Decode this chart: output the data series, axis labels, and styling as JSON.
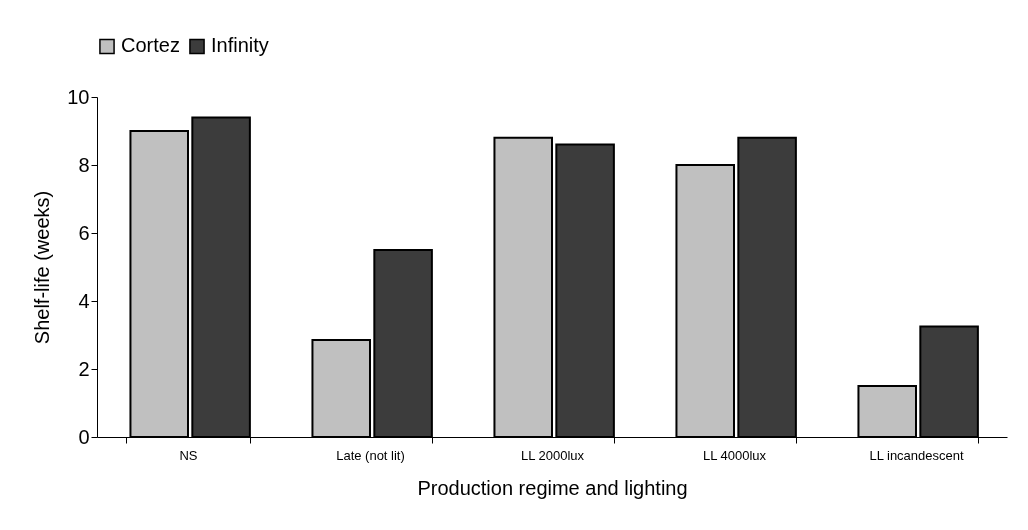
{
  "chart_data": {
    "type": "bar",
    "xlabel": "Production regime and lighting",
    "ylabel": "Shelf-life (weeks)",
    "categories": [
      "NS",
      "Late (not lit)",
      "LL 2000lux",
      "LL 4000lux",
      "LL incandescent"
    ],
    "series": [
      {
        "name": "Cortez",
        "color": "#c0c0c0",
        "values": [
          9.0,
          2.85,
          8.8,
          8.0,
          1.5
        ]
      },
      {
        "name": "Infinity",
        "color": "#3c3c3c",
        "values": [
          9.4,
          5.5,
          8.6,
          8.8,
          3.25
        ]
      }
    ],
    "ylim": [
      0,
      10
    ],
    "yticks": [
      0,
      2,
      4,
      6,
      8,
      10
    ],
    "grid": false,
    "legend": "top"
  }
}
